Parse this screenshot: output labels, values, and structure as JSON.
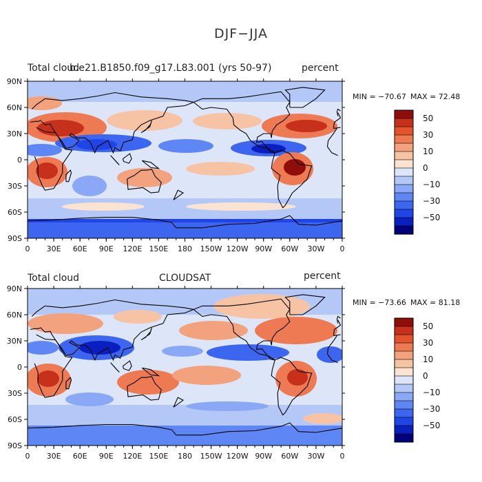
{
  "title": "DJF−JJA",
  "colors": {
    "ocean_pos": "#f2c2a8",
    "land": "#e8a27d",
    "coast": "#000000"
  },
  "colorbar": {
    "levels": [
      -60,
      -50,
      -40,
      -30,
      -20,
      -10,
      -5,
      0,
      5,
      10,
      20,
      30,
      40,
      50,
      60
    ],
    "labels": [
      "50",
      "30",
      "10",
      "0",
      "−10",
      "−30",
      "−50"
    ],
    "colors": [
      "#00007a",
      "#0a1fbf",
      "#1f45e6",
      "#3d66f0",
      "#5f86f5",
      "#8aa8f6",
      "#b4c8f7",
      "#dde6f9",
      "#fbe3d2",
      "#f7c3a5",
      "#f2a27c",
      "#ed7a52",
      "#e5532d",
      "#c7301a",
      "#8f0e0a"
    ]
  },
  "chart_data": [
    {
      "type": "heatmap",
      "panel_left_title": "Total cloud",
      "panel_center_title": "b.e21.B1850.f09_g17.L83.001 (yrs 50-97)",
      "units": "percent",
      "min_label": "MIN = −70.67",
      "max_label": "MAX =  72.48",
      "min": -70.67,
      "max": 72.48,
      "x_ticks": [
        "0",
        "30E",
        "60E",
        "90E",
        "120E",
        "150E",
        "180",
        "150W",
        "120W",
        "90W",
        "60W",
        "30W",
        "0"
      ],
      "y_ticks": [
        "90N",
        "60N",
        "30N",
        "0",
        "30S",
        "60S",
        "90S"
      ],
      "xlim": [
        0,
        360
      ],
      "ylim": [
        -90,
        90
      ]
    },
    {
      "type": "heatmap",
      "panel_left_title": "Total cloud",
      "panel_center_title": "CLOUDSAT",
      "units": "percent",
      "min_label": "MIN = −73.66",
      "max_label": "MAX =  81.18",
      "min": -73.66,
      "max": 81.18,
      "x_ticks": [
        "0",
        "30E",
        "60E",
        "90E",
        "120E",
        "150E",
        "180",
        "150W",
        "120W",
        "90W",
        "60W",
        "30W",
        "0"
      ],
      "y_ticks": [
        "90N",
        "60N",
        "30N",
        "0",
        "30S",
        "60S",
        "90S"
      ],
      "xlim": [
        0,
        360
      ],
      "ylim": [
        -90,
        90
      ]
    }
  ]
}
